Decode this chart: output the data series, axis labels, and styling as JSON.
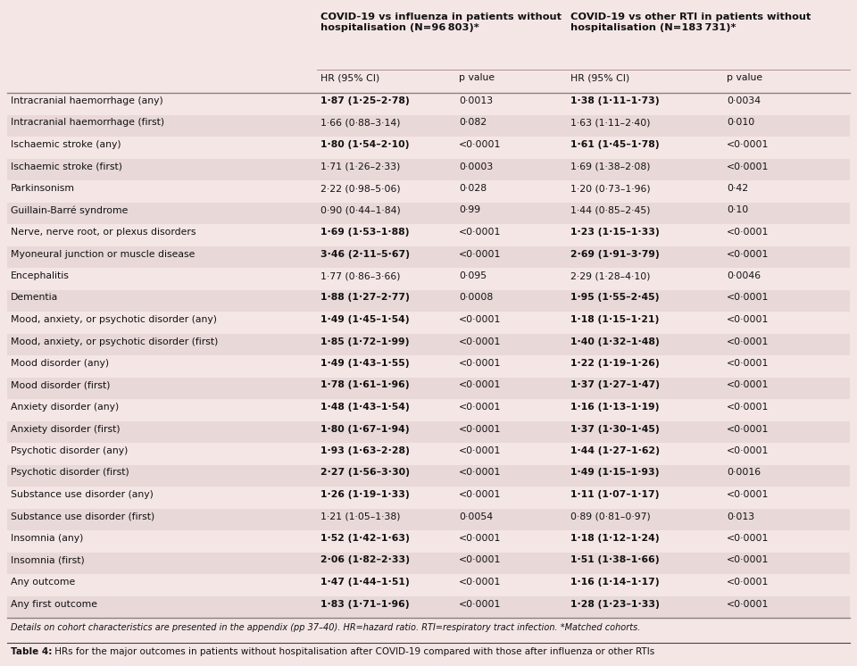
{
  "bg_color": "#f5e6e6",
  "row_colors": [
    "#f5e6e6",
    "#e8d8d8"
  ],
  "title_col1": "COVID-19 vs influenza in patients without\nhospitalisation (N=96 803)*",
  "title_col2": "COVID-19 vs other RTI in patients without\nhospitalisation (N=183 731)*",
  "subheader": [
    "HR (95% CI)",
    "p value",
    "HR (95% CI)",
    "p value"
  ],
  "rows": [
    [
      "Intracranial haemorrhage (any)",
      "1·87 (1·25–2·78)",
      "0·0013",
      "1·38 (1·11–1·73)",
      "0·0034"
    ],
    [
      "Intracranial haemorrhage (first)",
      "1·66 (0·88–3·14)",
      "0·082",
      "1·63 (1·11–2·40)",
      "0·010"
    ],
    [
      "Ischaemic stroke (any)",
      "1·80 (1·54–2·10)",
      "<0·0001",
      "1·61 (1·45–1·78)",
      "<0·0001"
    ],
    [
      "Ischaemic stroke (first)",
      "1·71 (1·26–2·33)",
      "0·0003",
      "1·69 (1·38–2·08)",
      "<0·0001"
    ],
    [
      "Parkinsonism",
      "2·22 (0·98–5·06)",
      "0·028",
      "1·20 (0·73–1·96)",
      "0·42"
    ],
    [
      "Guillain-Barré syndrome",
      "0·90 (0·44–1·84)",
      "0·99",
      "1·44 (0·85–2·45)",
      "0·10"
    ],
    [
      "Nerve, nerve root, or plexus disorders",
      "1·69 (1·53–1·88)",
      "<0·0001",
      "1·23 (1·15–1·33)",
      "<0·0001"
    ],
    [
      "Myoneural junction or muscle disease",
      "3·46 (2·11–5·67)",
      "<0·0001",
      "2·69 (1·91–3·79)",
      "<0·0001"
    ],
    [
      "Encephalitis",
      "1·77 (0·86–3·66)",
      "0·095",
      "2·29 (1·28–4·10)",
      "0·0046"
    ],
    [
      "Dementia",
      "1·88 (1·27–2·77)",
      "0·0008",
      "1·95 (1·55–2·45)",
      "<0·0001"
    ],
    [
      "Mood, anxiety, or psychotic disorder (any)",
      "1·49 (1·45–1·54)",
      "<0·0001",
      "1·18 (1·15–1·21)",
      "<0·0001"
    ],
    [
      "Mood, anxiety, or psychotic disorder (first)",
      "1·85 (1·72–1·99)",
      "<0·0001",
      "1·40 (1·32–1·48)",
      "<0·0001"
    ],
    [
      "Mood disorder (any)",
      "1·49 (1·43–1·55)",
      "<0·0001",
      "1·22 (1·19–1·26)",
      "<0·0001"
    ],
    [
      "Mood disorder (first)",
      "1·78 (1·61–1·96)",
      "<0·0001",
      "1·37 (1·27–1·47)",
      "<0·0001"
    ],
    [
      "Anxiety disorder (any)",
      "1·48 (1·43–1·54)",
      "<0·0001",
      "1·16 (1·13–1·19)",
      "<0·0001"
    ],
    [
      "Anxiety disorder (first)",
      "1·80 (1·67–1·94)",
      "<0·0001",
      "1·37 (1·30–1·45)",
      "<0·0001"
    ],
    [
      "Psychotic disorder (any)",
      "1·93 (1·63–2·28)",
      "<0·0001",
      "1·44 (1·27–1·62)",
      "<0·0001"
    ],
    [
      "Psychotic disorder (first)",
      "2·27 (1·56–3·30)",
      "<0·0001",
      "1·49 (1·15–1·93)",
      "0·0016"
    ],
    [
      "Substance use disorder (any)",
      "1·26 (1·19–1·33)",
      "<0·0001",
      "1·11 (1·07–1·17)",
      "<0·0001"
    ],
    [
      "Substance use disorder (first)",
      "1·21 (1·05–1·38)",
      "0·0054",
      "0·89 (0·81–0·97)",
      "0·013"
    ],
    [
      "Insomnia (any)",
      "1·52 (1·42–1·63)",
      "<0·0001",
      "1·18 (1·12–1·24)",
      "<0·0001"
    ],
    [
      "Insomnia (first)",
      "2·06 (1·82–2·33)",
      "<0·0001",
      "1·51 (1·38–1·66)",
      "<0·0001"
    ],
    [
      "Any outcome",
      "1·47 (1·44–1·51)",
      "<0·0001",
      "1·16 (1·14–1·17)",
      "<0·0001"
    ],
    [
      "Any first outcome",
      "1·83 (1·71–1·96)",
      "<0·0001",
      "1·28 (1·23–1·33)",
      "<0·0001"
    ]
  ],
  "bold_hr_rows": [
    0,
    2,
    6,
    7,
    9,
    10,
    11,
    12,
    13,
    14,
    15,
    16,
    17,
    18,
    20,
    21,
    22,
    23
  ],
  "footnote": "Details on cohort characteristics are presented in the appendix (pp 37–40). HR=hazard ratio. RTI=respiratory tract infection. *Matched cohorts.",
  "caption_bold": "Table 4:",
  "caption_rest": " HRs for the major outcomes in patients without hospitalisation after COVID-19 compared with those after influenza or other RTIs"
}
